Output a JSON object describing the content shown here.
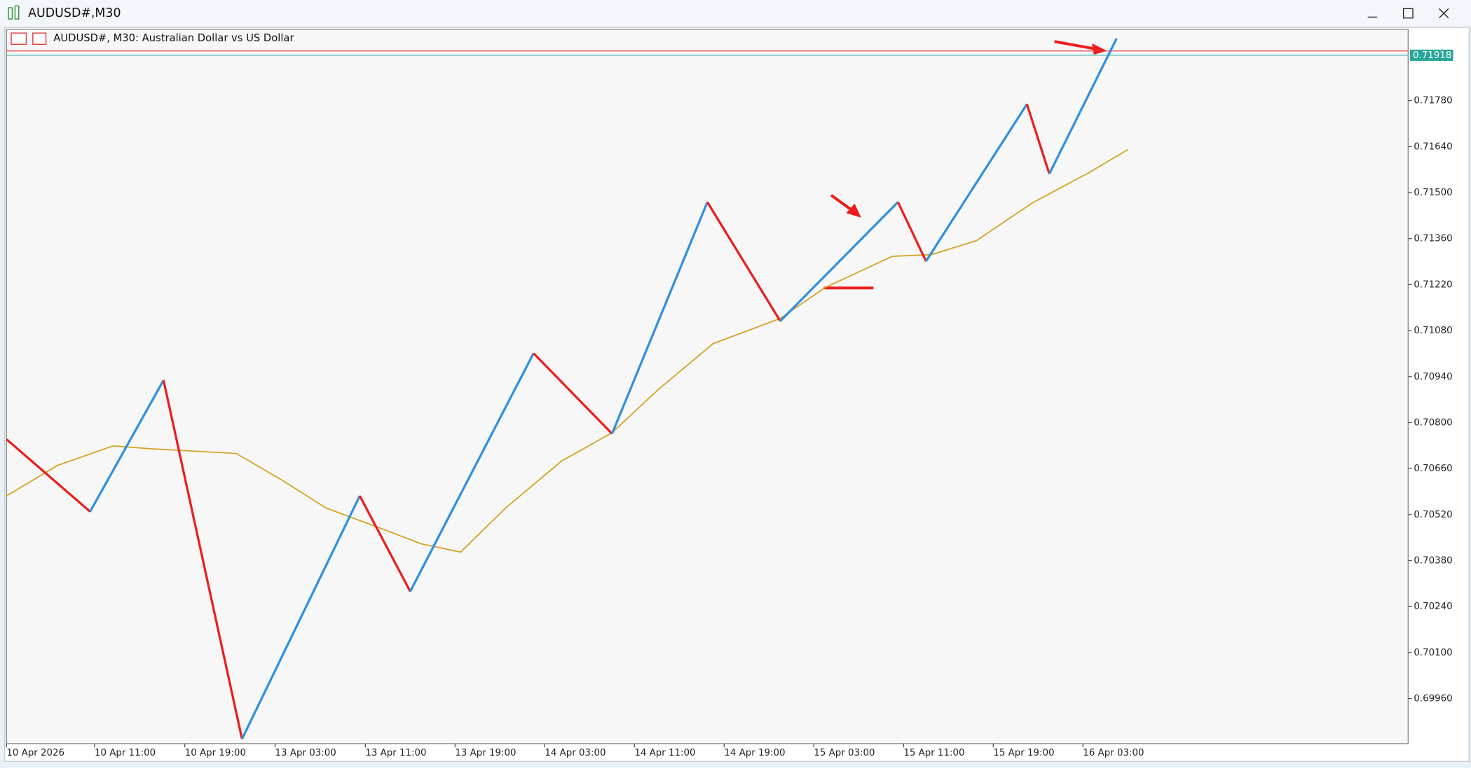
{
  "window": {
    "title": "AUDUSD#,M30"
  },
  "chart_data": {
    "type": "line",
    "title": "AUDUSD#, M30:  Australian Dollar vs US Dollar",
    "xlim": [
      0,
      250
    ],
    "ylim": [
      0.69823,
      0.71997
    ],
    "xticks": [
      {
        "value": 0,
        "label": "10 Apr 2026"
      },
      {
        "value": 15.7,
        "label": "10 Apr 11:00"
      },
      {
        "value": 31.8,
        "label": "10 Apr 19:00"
      },
      {
        "value": 47.9,
        "label": "13 Apr 03:00"
      },
      {
        "value": 64,
        "label": "13 Apr 11:00"
      },
      {
        "value": 80,
        "label": "13 Apr 19:00"
      },
      {
        "value": 96,
        "label": "14 Apr 03:00"
      },
      {
        "value": 112,
        "label": "14 Apr 11:00"
      },
      {
        "value": 128,
        "label": "14 Apr 19:00"
      },
      {
        "value": 144,
        "label": "15 Apr 03:00"
      },
      {
        "value": 160,
        "label": "15 Apr 11:00"
      },
      {
        "value": 176,
        "label": "15 Apr 19:00"
      },
      {
        "value": 192,
        "label": "16 Apr 03:00"
      }
    ],
    "yticks": [
      {
        "value": 0.7178,
        "label": "0.71780"
      },
      {
        "value": 0.7164,
        "label": "0.71640"
      },
      {
        "value": 0.715,
        "label": "0.71500"
      },
      {
        "value": 0.7136,
        "label": "0.71360"
      },
      {
        "value": 0.7122,
        "label": "0.71220"
      },
      {
        "value": 0.7108,
        "label": "0.71080"
      },
      {
        "value": 0.7094,
        "label": "0.70940"
      },
      {
        "value": 0.708,
        "label": "0.70800"
      },
      {
        "value": 0.7066,
        "label": "0.70660"
      },
      {
        "value": 0.7052,
        "label": "0.70520"
      },
      {
        "value": 0.7038,
        "label": "0.70380"
      },
      {
        "value": 0.7024,
        "label": "0.70240"
      },
      {
        "value": 0.701,
        "label": "0.70100"
      },
      {
        "value": 0.6996,
        "label": "0.69960"
      }
    ],
    "zigzag": {
      "up_color": "#2f8fe0",
      "down_color": "#ee1c1c",
      "x": [
        0,
        14.9,
        28,
        42,
        63,
        72,
        94,
        108,
        125,
        138,
        159,
        164,
        182,
        186,
        198
      ],
      "values": [
        0.70749,
        0.70529,
        0.70929,
        0.69837,
        0.70577,
        0.70286,
        0.71011,
        0.70766,
        0.71471,
        0.71109,
        0.71471,
        0.71291,
        0.71769,
        0.71557,
        0.71969
      ]
    },
    "moving_average": {
      "color": "#d4a020",
      "x": [
        0,
        9,
        19,
        26,
        41,
        49,
        57,
        66,
        74,
        81,
        89,
        99,
        108,
        116,
        126,
        138,
        146,
        158,
        165,
        173,
        183,
        193,
        200
      ],
      "values": [
        0.70577,
        0.70669,
        0.70729,
        0.7072,
        0.70706,
        0.70626,
        0.7054,
        0.70483,
        0.70431,
        0.70406,
        0.7054,
        0.70683,
        0.70769,
        0.70897,
        0.7104,
        0.71117,
        0.71211,
        0.71306,
        0.71311,
        0.71354,
        0.71469,
        0.7156,
        0.71631
      ]
    },
    "price_lines": [
      {
        "value": 0.71918,
        "label": "0.71918",
        "color": "#26a69a"
      },
      {
        "value": 0.71931,
        "color": "#ee3333"
      }
    ]
  }
}
